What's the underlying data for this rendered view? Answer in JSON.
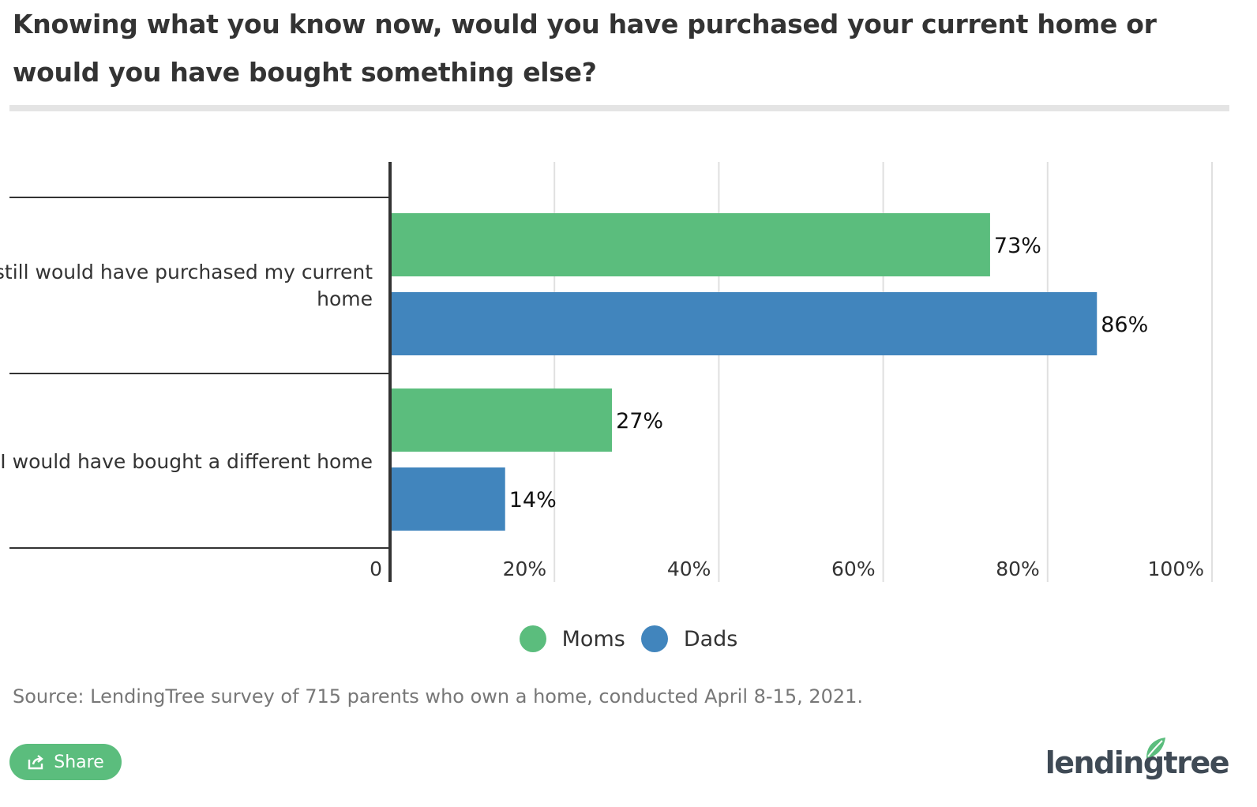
{
  "title": "Knowing what you know now, would you have purchased your current home or would you have bought something else?",
  "source": "Source: LendingTree survey of 715 parents who own a home, conducted April 8-15, 2021.",
  "share_label": "Share",
  "brand": "lendingtree",
  "colors": {
    "moms": "#5bbd7d",
    "dads": "#4185bd",
    "title_rule": "#e4e4e4",
    "gridline": "#e0e0e0",
    "axis": "#333333"
  },
  "icons": [
    "share-icon",
    "lendingtree-leaf-icon"
  ],
  "chart_data": {
    "type": "bar",
    "orientation": "horizontal",
    "categories": [
      "I still would have purchased my current home",
      "I would have bought a different home"
    ],
    "series": [
      {
        "name": "Moms",
        "values": [
          73,
          27
        ],
        "labels": [
          "73%",
          "27%"
        ]
      },
      {
        "name": "Dads",
        "values": [
          86,
          14
        ],
        "labels": [
          "86%",
          "14%"
        ]
      }
    ],
    "xlim": [
      0,
      100
    ],
    "x_ticks": [
      0,
      20,
      40,
      60,
      80,
      100
    ],
    "x_tick_labels": [
      "0",
      "20%",
      "40%",
      "60%",
      "80%",
      "100%"
    ],
    "grid": true,
    "legend_position": "bottom-center"
  }
}
